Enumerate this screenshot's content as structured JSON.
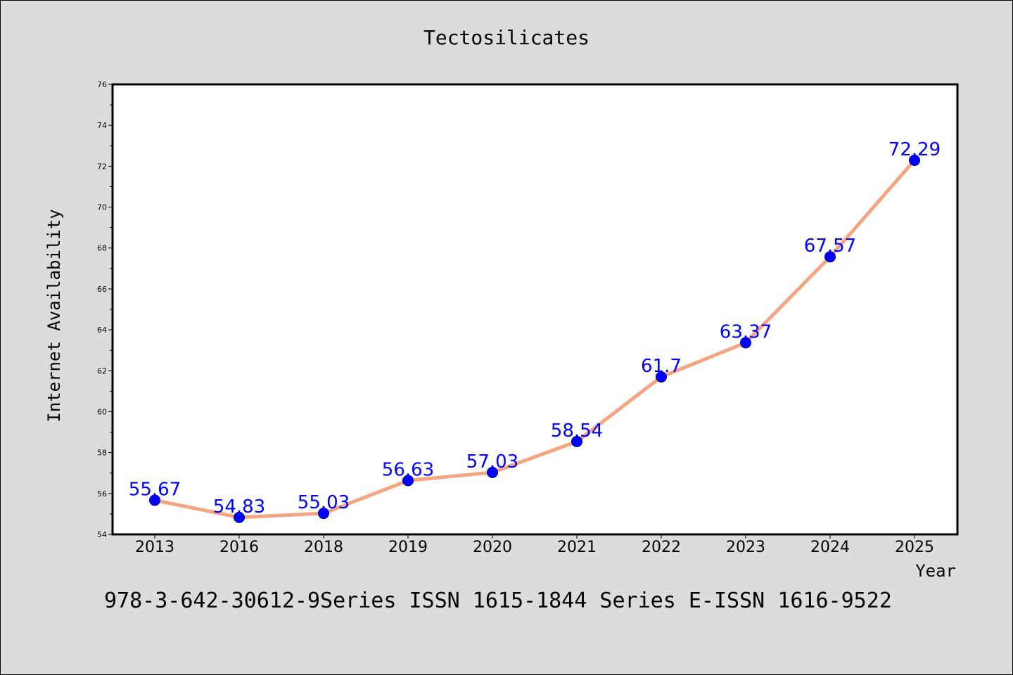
{
  "chart_data": {
    "type": "line",
    "title": "Tectosilicates",
    "xlabel": "Year",
    "ylabel": "Internet Availability",
    "categories": [
      "2013",
      "2016",
      "2018",
      "2019",
      "2020",
      "2021",
      "2022",
      "2023",
      "2024",
      "2025"
    ],
    "series": [
      {
        "values": [
          55.67,
          54.83,
          55.03,
          56.63,
          57.03,
          58.54,
          61.7,
          63.37,
          67.57,
          72.29
        ],
        "labels": [
          "55.67",
          "54.83",
          "55.03",
          "56.63",
          "57.03",
          "58.54",
          "61.7",
          "63.37",
          "67.57",
          "72.29"
        ]
      }
    ],
    "ylim": [
      54,
      76
    ],
    "yticks": [
      "54",
      "56",
      "58",
      "60",
      "62",
      "64",
      "66",
      "68",
      "70",
      "72",
      "74",
      "76"
    ],
    "grid": false,
    "legend": "none",
    "colors": {
      "line": "#f4a582",
      "marker": "#0000ff",
      "data_label": "#0000ff",
      "background": "#dcdcdc",
      "plot_area": "#ffffff"
    }
  },
  "footer": "978-3-642-30612-9Series ISSN 1615-1844 Series E-ISSN 1616-9522"
}
